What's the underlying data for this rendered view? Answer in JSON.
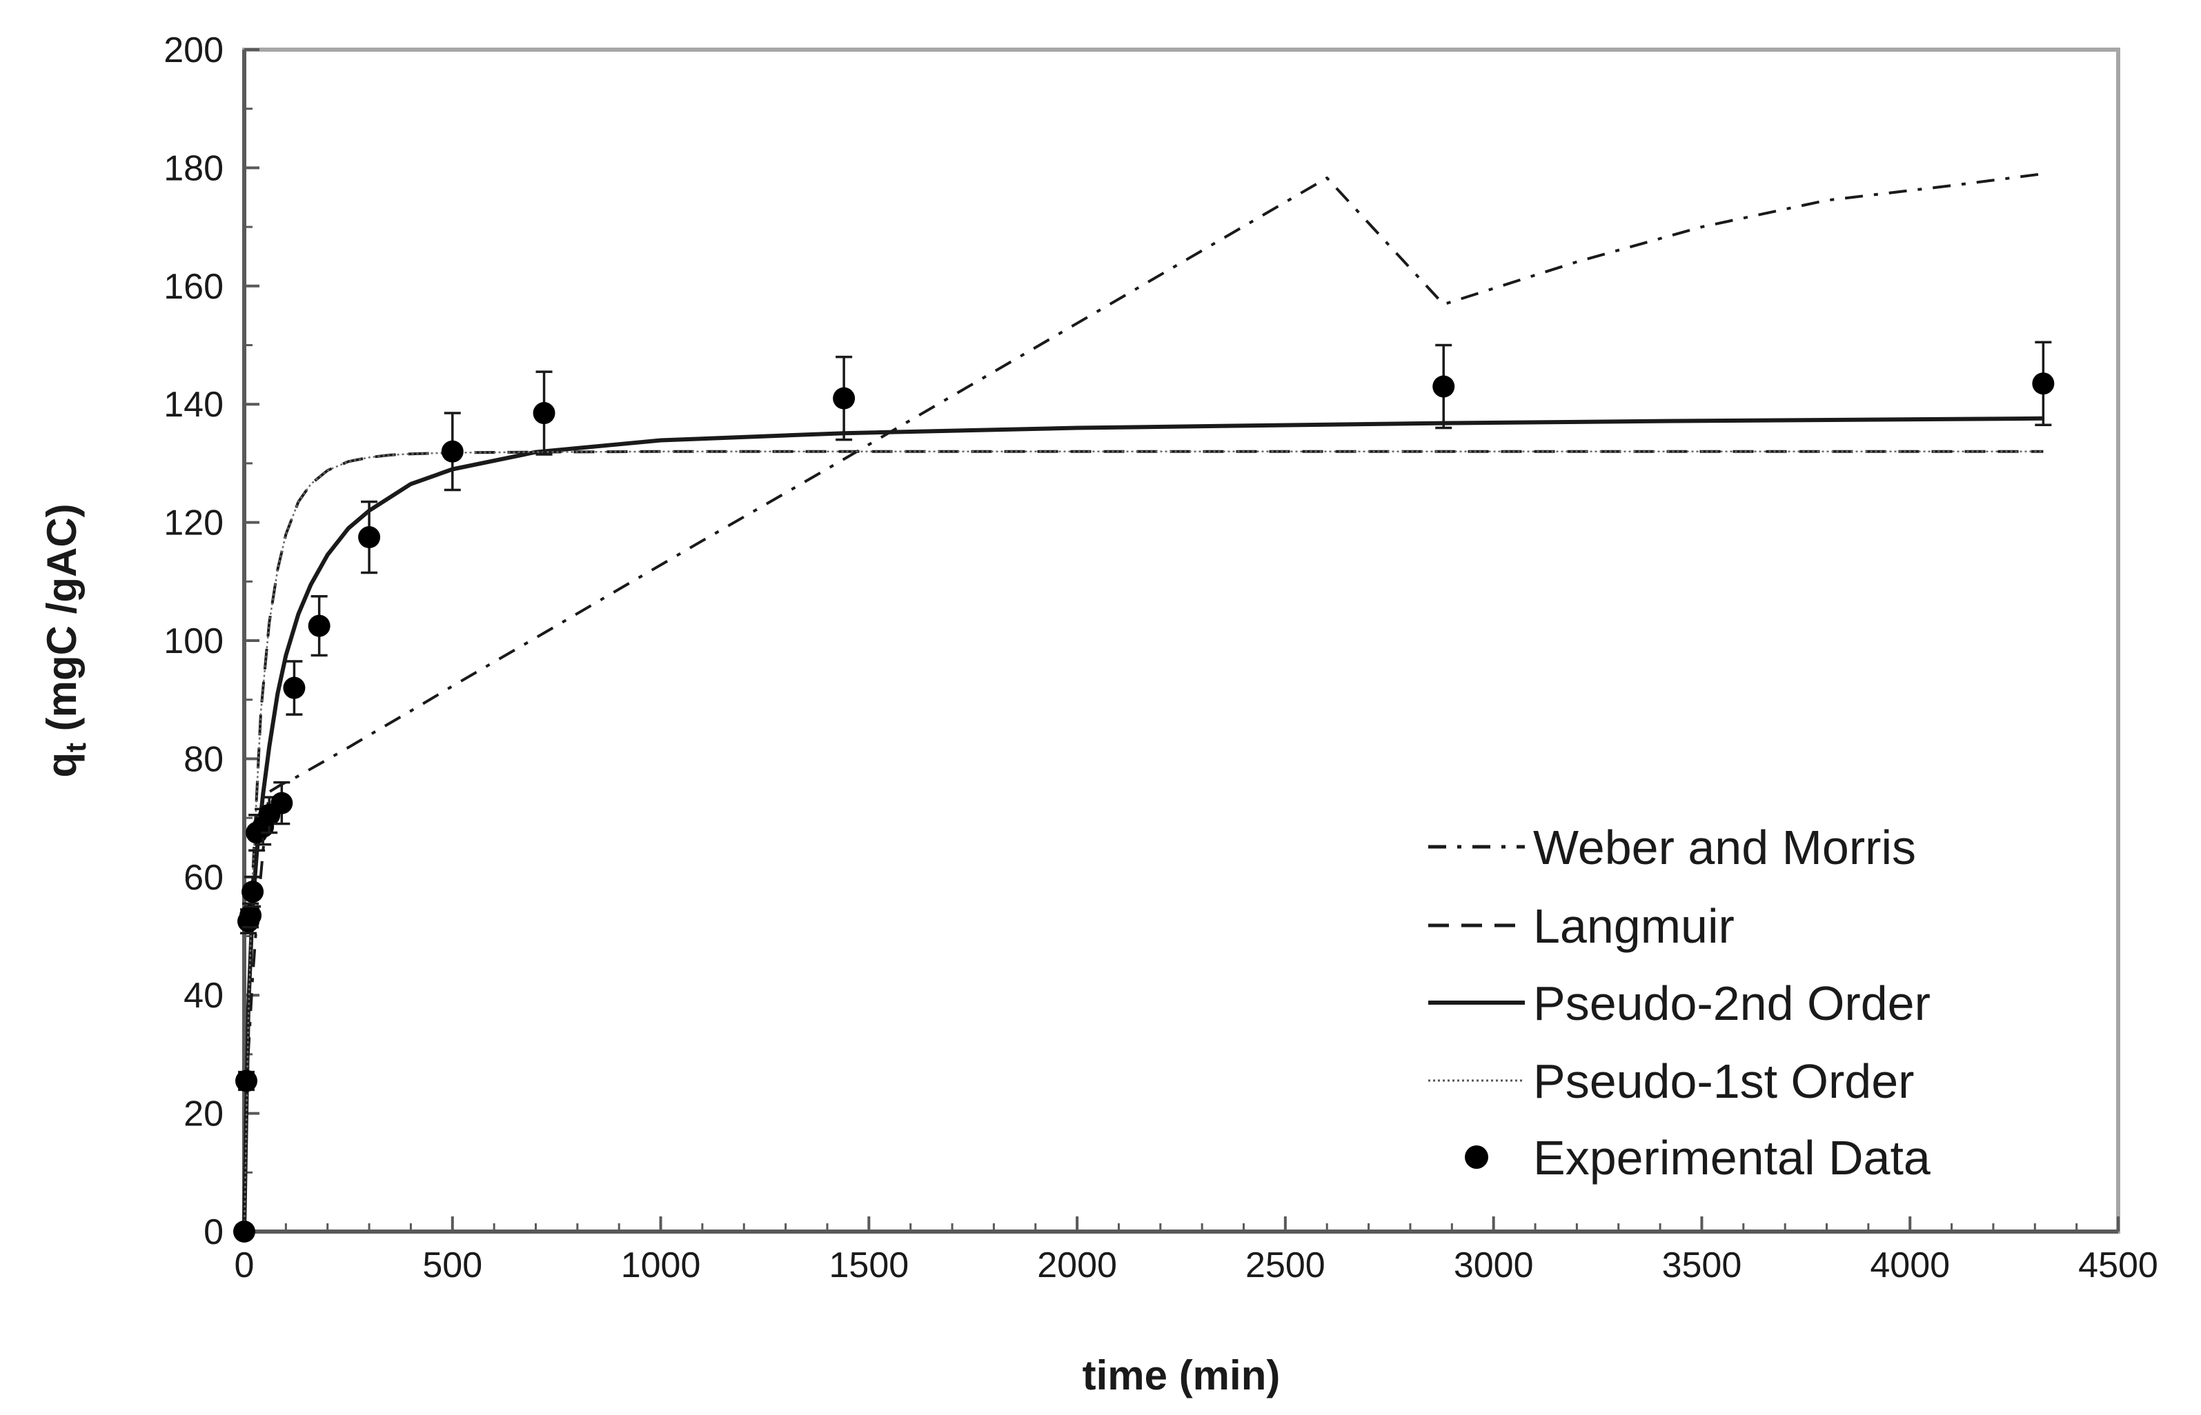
{
  "chart_data": {
    "type": "scatter",
    "title": "",
    "xlabel": "time (min)",
    "ylabel": {
      "main": "q",
      "sub": "t",
      "rest": " (mgC /gAC)"
    },
    "xlim": [
      0,
      4500
    ],
    "ylim": [
      0,
      200
    ],
    "xticks": [
      0,
      500,
      1000,
      1500,
      2000,
      2500,
      3000,
      3500,
      4000,
      4500
    ],
    "yticks": [
      0,
      20,
      40,
      60,
      80,
      100,
      120,
      140,
      160,
      180,
      200
    ],
    "grid": false,
    "legend_position": "bottom-right",
    "series": [
      {
        "name": "Weber and Morris",
        "style": "dash-dot",
        "x": [
          0,
          5,
          10,
          20,
          30,
          45,
          60,
          90,
          120,
          180,
          240,
          300,
          400,
          500,
          600,
          720,
          900,
          1100,
          1300,
          1440,
          1600,
          1800,
          2000,
          2300,
          2600,
          2880,
          3200,
          3500,
          3800,
          4100,
          4320
        ],
        "y": [
          0,
          21.5,
          30.4,
          42.9,
          52.6,
          64.4,
          74.4,
          75.7,
          76.7,
          79.1,
          81.5,
          84.0,
          88.1,
          92.3,
          96.4,
          101.3,
          108.7,
          116.9,
          125.0,
          130.7,
          137.3,
          145.5,
          153.7,
          166.0,
          178.3,
          156.9,
          164.1,
          170.0,
          174.5,
          177.0,
          179.0
        ]
      },
      {
        "name": "Langmuir",
        "style": "dashed",
        "x": [
          0,
          10,
          20,
          40,
          60,
          80,
          100,
          130,
          160,
          200,
          250,
          300,
          350,
          400,
          500,
          700,
          1000,
          2000,
          3000,
          4320
        ],
        "y": [
          0,
          36,
          60,
          88,
          103,
          112,
          118,
          123.5,
          126.5,
          128.8,
          130.3,
          131.0,
          131.4,
          131.6,
          131.8,
          131.9,
          132,
          132,
          132,
          132
        ]
      },
      {
        "name": "Pseudo-2nd Order",
        "style": "solid",
        "x": [
          0,
          5,
          10,
          20,
          30,
          45,
          60,
          80,
          100,
          130,
          160,
          200,
          250,
          300,
          400,
          500,
          700,
          1000,
          1440,
          2000,
          2880,
          3500,
          4320
        ],
        "y": [
          0,
          20,
          38,
          55,
          64,
          74,
          82,
          91,
          97.5,
          104.5,
          109.5,
          114.5,
          119,
          122,
          126.5,
          129,
          131.9,
          133.9,
          135.1,
          136,
          136.8,
          137.2,
          137.6
        ]
      },
      {
        "name": "Pseudo-1st Order",
        "style": "dotted",
        "x": [
          0,
          10,
          20,
          40,
          60,
          80,
          100,
          130,
          160,
          200,
          250,
          300,
          350,
          400,
          500,
          700,
          1000,
          2000,
          3000,
          4320
        ],
        "y": [
          0,
          36,
          60,
          88,
          103,
          112,
          118,
          123.5,
          126.5,
          128.8,
          130.3,
          131.0,
          131.4,
          131.6,
          131.8,
          131.9,
          132,
          132,
          132,
          132
        ]
      }
    ],
    "experimental": {
      "name": "Experimental Data",
      "x": [
        0,
        5,
        10,
        15,
        20,
        30,
        45,
        60,
        90,
        120,
        180,
        300,
        500,
        720,
        1440,
        2880,
        4320
      ],
      "y": [
        0,
        25.5,
        52.5,
        53.5,
        57.5,
        67.5,
        68.5,
        70.5,
        72.5,
        92,
        102.5,
        117.5,
        132,
        138.5,
        141,
        143,
        143.5
      ],
      "err": [
        0,
        1.5,
        2,
        2,
        2.5,
        3,
        3,
        3,
        3.5,
        4.5,
        5,
        6,
        6.5,
        7,
        7,
        7,
        7
      ]
    }
  }
}
